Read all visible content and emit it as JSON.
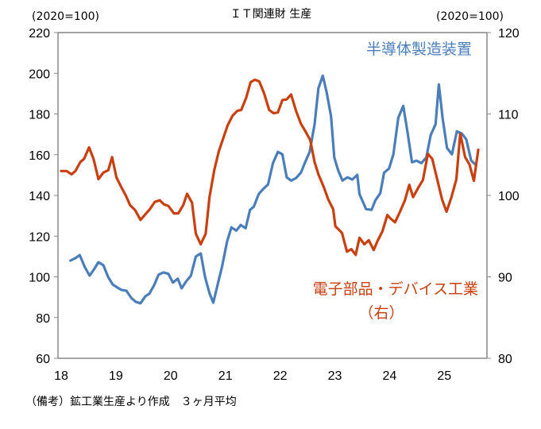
{
  "chart_data": {
    "type": "line",
    "title": "ＩＴ関連財 生産",
    "left_unit": "(2020=100)",
    "right_unit": "(2020=100)",
    "note": "（備考）鉱工業生産より作成　３ヶ月平均",
    "xlabel": "",
    "x_ticks": [
      "18",
      "19",
      "20",
      "21",
      "22",
      "23",
      "24",
      "25"
    ],
    "x_range": [
      2018.0,
      2025.85
    ],
    "left_axis": {
      "ylim": [
        60,
        220
      ],
      "ticks": [
        "60",
        "80",
        "100",
        "120",
        "140",
        "160",
        "180",
        "200",
        "220"
      ]
    },
    "right_axis": {
      "ylim": [
        80,
        120
      ],
      "ticks": [
        "80",
        "90",
        "100",
        "110",
        "120"
      ]
    },
    "grid": false,
    "series": [
      {
        "name": "半導体製造装置",
        "label_lines": [
          "半導体製造装置"
        ],
        "axis": "left",
        "color": "#4a7ebb",
        "points": [
          [
            2018.17,
            108.0
          ],
          [
            2018.26,
            109.2
          ],
          [
            2018.34,
            110.7
          ],
          [
            2018.43,
            104.9
          ],
          [
            2018.52,
            100.6
          ],
          [
            2018.61,
            104.1
          ],
          [
            2018.68,
            107.2
          ],
          [
            2018.77,
            105.7
          ],
          [
            2018.86,
            99.8
          ],
          [
            2018.94,
            96.3
          ],
          [
            2019.03,
            94.7
          ],
          [
            2019.1,
            93.6
          ],
          [
            2019.19,
            93.2
          ],
          [
            2019.28,
            89.7
          ],
          [
            2019.36,
            87.8
          ],
          [
            2019.45,
            87.0
          ],
          [
            2019.54,
            90.5
          ],
          [
            2019.61,
            91.7
          ],
          [
            2019.7,
            96.0
          ],
          [
            2019.78,
            101.1
          ],
          [
            2019.87,
            102.2
          ],
          [
            2019.96,
            101.5
          ],
          [
            2020.04,
            97.2
          ],
          [
            2020.13,
            99.1
          ],
          [
            2020.2,
            94.4
          ],
          [
            2020.29,
            98.0
          ],
          [
            2020.37,
            100.6
          ],
          [
            2020.46,
            110.0
          ],
          [
            2020.55,
            111.5
          ],
          [
            2020.63,
            99.8
          ],
          [
            2020.71,
            92.0
          ],
          [
            2020.78,
            87.3
          ],
          [
            2020.87,
            97.4
          ],
          [
            2020.94,
            105.2
          ],
          [
            2021.03,
            117.3
          ],
          [
            2021.11,
            124.3
          ],
          [
            2021.2,
            122.7
          ],
          [
            2021.28,
            125.5
          ],
          [
            2021.37,
            123.9
          ],
          [
            2021.45,
            132.9
          ],
          [
            2021.52,
            134.5
          ],
          [
            2021.61,
            140.7
          ],
          [
            2021.7,
            143.4
          ],
          [
            2021.78,
            145.4
          ],
          [
            2021.87,
            155.9
          ],
          [
            2021.96,
            161.4
          ],
          [
            2022.04,
            160.2
          ],
          [
            2022.12,
            148.9
          ],
          [
            2022.2,
            147.3
          ],
          [
            2022.29,
            148.5
          ],
          [
            2022.38,
            151.2
          ],
          [
            2022.45,
            155.9
          ],
          [
            2022.54,
            161.4
          ],
          [
            2022.63,
            175.0
          ],
          [
            2022.7,
            192.6
          ],
          [
            2022.78,
            198.8
          ],
          [
            2022.85,
            190.6
          ],
          [
            2022.93,
            178.9
          ],
          [
            2022.99,
            158.6
          ],
          [
            2023.06,
            152.4
          ],
          [
            2023.14,
            147.3
          ],
          [
            2023.23,
            148.9
          ],
          [
            2023.32,
            147.8
          ],
          [
            2023.41,
            150.1
          ],
          [
            2023.45,
            140.7
          ],
          [
            2023.57,
            133.3
          ],
          [
            2023.67,
            132.9
          ],
          [
            2023.74,
            137.6
          ],
          [
            2023.83,
            141.1
          ],
          [
            2023.9,
            151.2
          ],
          [
            2023.99,
            153.2
          ],
          [
            2024.07,
            160.2
          ],
          [
            2024.16,
            178.2
          ],
          [
            2024.25,
            184.0
          ],
          [
            2024.33,
            170.8
          ],
          [
            2024.41,
            156.3
          ],
          [
            2024.49,
            157.1
          ],
          [
            2024.58,
            155.9
          ],
          [
            2024.67,
            158.6
          ],
          [
            2024.75,
            169.6
          ],
          [
            2024.84,
            175.0
          ],
          [
            2024.9,
            194.5
          ],
          [
            2024.97,
            177.8
          ],
          [
            2025.05,
            163.3
          ],
          [
            2025.14,
            160.2
          ],
          [
            2025.23,
            171.5
          ],
          [
            2025.32,
            170.4
          ],
          [
            2025.4,
            167.6
          ],
          [
            2025.49,
            157.1
          ],
          [
            2025.57,
            155.1
          ]
        ]
      },
      {
        "name": "電子部品・デバイス工業（右）",
        "label_lines": [
          "電子部品・デバイス工業",
          "（右）"
        ],
        "axis": "right",
        "color": "#c8400f",
        "points": [
          [
            2018.0,
            103.0
          ],
          [
            2018.1,
            103.0
          ],
          [
            2018.19,
            102.6
          ],
          [
            2018.26,
            103.0
          ],
          [
            2018.35,
            104.1
          ],
          [
            2018.42,
            104.5
          ],
          [
            2018.51,
            105.9
          ],
          [
            2018.59,
            104.5
          ],
          [
            2018.68,
            102.0
          ],
          [
            2018.77,
            102.8
          ],
          [
            2018.86,
            103.1
          ],
          [
            2018.93,
            104.7
          ],
          [
            2019.01,
            102.2
          ],
          [
            2019.1,
            101.0
          ],
          [
            2019.18,
            100.0
          ],
          [
            2019.26,
            98.8
          ],
          [
            2019.35,
            98.2
          ],
          [
            2019.45,
            97.0
          ],
          [
            2019.54,
            97.7
          ],
          [
            2019.62,
            98.3
          ],
          [
            2019.71,
            99.2
          ],
          [
            2019.8,
            99.4
          ],
          [
            2019.88,
            98.9
          ],
          [
            2019.96,
            98.7
          ],
          [
            2020.06,
            97.8
          ],
          [
            2020.14,
            97.8
          ],
          [
            2020.23,
            98.8
          ],
          [
            2020.3,
            100.2
          ],
          [
            2020.39,
            99.1
          ],
          [
            2020.46,
            95.3
          ],
          [
            2020.55,
            94.0
          ],
          [
            2020.64,
            95.3
          ],
          [
            2020.71,
            99.8
          ],
          [
            2020.8,
            103.2
          ],
          [
            2020.88,
            105.4
          ],
          [
            2020.97,
            107.2
          ],
          [
            2021.04,
            108.6
          ],
          [
            2021.13,
            109.8
          ],
          [
            2021.22,
            110.4
          ],
          [
            2021.29,
            110.5
          ],
          [
            2021.38,
            112.0
          ],
          [
            2021.46,
            113.9
          ],
          [
            2021.54,
            114.2
          ],
          [
            2021.62,
            114.0
          ],
          [
            2021.71,
            112.5
          ],
          [
            2021.8,
            110.5
          ],
          [
            2021.88,
            110.1
          ],
          [
            2021.96,
            110.2
          ],
          [
            2022.04,
            111.7
          ],
          [
            2022.12,
            111.8
          ],
          [
            2022.2,
            112.4
          ],
          [
            2022.29,
            110.4
          ],
          [
            2022.38,
            108.8
          ],
          [
            2022.46,
            107.9
          ],
          [
            2022.55,
            106.8
          ],
          [
            2022.63,
            104.1
          ],
          [
            2022.7,
            102.6
          ],
          [
            2022.8,
            101.0
          ],
          [
            2022.88,
            99.5
          ],
          [
            2022.97,
            98.3
          ],
          [
            2023.01,
            96.2
          ],
          [
            2023.13,
            95.4
          ],
          [
            2023.22,
            93.1
          ],
          [
            2023.3,
            93.4
          ],
          [
            2023.38,
            92.7
          ],
          [
            2023.45,
            94.8
          ],
          [
            2023.54,
            94.0
          ],
          [
            2023.62,
            94.5
          ],
          [
            2023.71,
            93.3
          ],
          [
            2023.78,
            94.4
          ],
          [
            2023.87,
            95.6
          ],
          [
            2023.96,
            97.6
          ],
          [
            2024.01,
            97.2
          ],
          [
            2024.1,
            96.7
          ],
          [
            2024.19,
            98.0
          ],
          [
            2024.28,
            99.4
          ],
          [
            2024.36,
            101.3
          ],
          [
            2024.43,
            99.8
          ],
          [
            2024.52,
            100.9
          ],
          [
            2024.61,
            101.9
          ],
          [
            2024.7,
            105.1
          ],
          [
            2024.78,
            104.5
          ],
          [
            2024.87,
            102.0
          ],
          [
            2024.96,
            99.5
          ],
          [
            2025.04,
            98.0
          ],
          [
            2025.13,
            99.8
          ],
          [
            2025.22,
            102.0
          ],
          [
            2025.29,
            107.6
          ],
          [
            2025.38,
            104.7
          ],
          [
            2025.46,
            103.8
          ],
          [
            2025.54,
            101.8
          ],
          [
            2025.62,
            105.6
          ]
        ]
      }
    ]
  }
}
